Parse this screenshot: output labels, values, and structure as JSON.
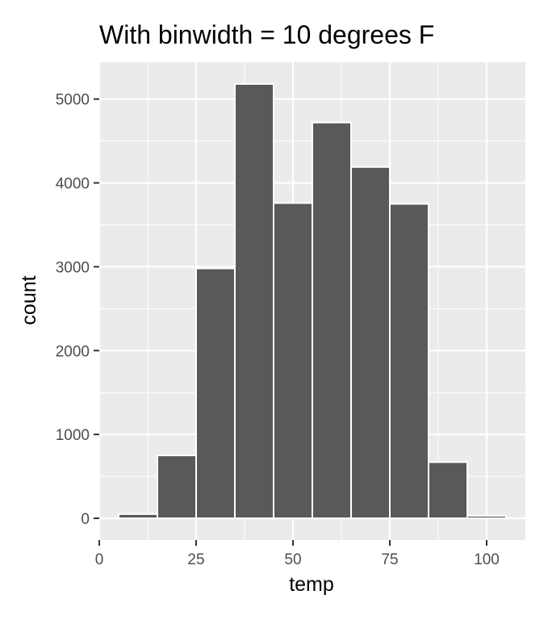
{
  "chart_data": {
    "type": "bar",
    "title": "With binwidth = 10 degrees F",
    "xlabel": "temp",
    "ylabel": "count",
    "binwidth": 10,
    "bins": [
      {
        "x0": 5,
        "x1": 15,
        "count": 50
      },
      {
        "x0": 15,
        "x1": 25,
        "count": 750
      },
      {
        "x0": 25,
        "x1": 35,
        "count": 2980
      },
      {
        "x0": 35,
        "x1": 45,
        "count": 5180
      },
      {
        "x0": 45,
        "x1": 55,
        "count": 3760
      },
      {
        "x0": 55,
        "x1": 65,
        "count": 4720
      },
      {
        "x0": 65,
        "x1": 75,
        "count": 4190
      },
      {
        "x0": 75,
        "x1": 85,
        "count": 3750
      },
      {
        "x0": 85,
        "x1": 95,
        "count": 670
      },
      {
        "x0": 95,
        "x1": 105,
        "count": 30
      }
    ],
    "xlim": [
      0,
      110
    ],
    "ylim": [
      -260,
      5440
    ],
    "x_ticks": [
      0,
      25,
      50,
      75,
      100
    ],
    "x_tick_labels": [
      "0",
      "25",
      "50",
      "75",
      "100"
    ],
    "y_ticks": [
      0,
      1000,
      2000,
      3000,
      4000,
      5000
    ],
    "y_tick_labels": [
      "0",
      "1000",
      "2000",
      "3000",
      "4000",
      "5000"
    ],
    "grid": true,
    "colors": {
      "panel": "#ebebeb",
      "grid": "#ffffff",
      "bar_fill": "#595959",
      "bar_stroke": "#ffffff"
    }
  }
}
